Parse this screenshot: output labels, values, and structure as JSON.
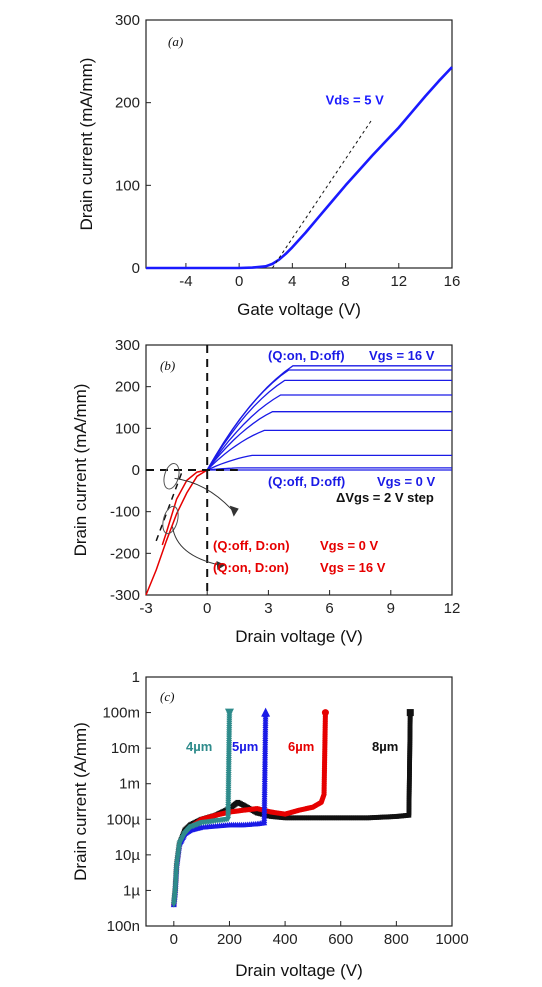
{
  "chart_data": [
    {
      "panel": "(a)",
      "type": "line",
      "xlabel": "Gate voltage (V)",
      "ylabel": "Drain current (mA/mm)",
      "xlim": [
        -7,
        16
      ],
      "ylim": [
        0,
        300
      ],
      "xticks": [
        "-4",
        "0",
        "4",
        "8",
        "12",
        "16"
      ],
      "yticks": [
        "0",
        "100",
        "200",
        "300"
      ],
      "annotations": [
        {
          "text": "Vds = 5 V",
          "color": "#1a1aff"
        }
      ],
      "series": [
        {
          "color": "#1a1aff",
          "x": [
            -7,
            -4,
            0,
            1,
            2,
            2.5,
            3,
            3.5,
            4,
            5,
            6,
            7,
            8,
            9,
            10,
            11,
            12,
            13,
            14,
            15,
            16
          ],
          "y": [
            0,
            0,
            0,
            0.5,
            2,
            5,
            10,
            17,
            25,
            43,
            62,
            81,
            100,
            118,
            136,
            153,
            170,
            189,
            208,
            226,
            243
          ]
        },
        {
          "style": "dashed-fit",
          "color": "#111111",
          "x": [
            2.5,
            10
          ],
          "y": [
            0,
            180
          ]
        }
      ]
    },
    {
      "panel": "(b)",
      "type": "line",
      "xlabel": "Drain voltage (V)",
      "ylabel": "Drain current (mA/mm)",
      "xlim": [
        -3,
        12
      ],
      "ylim": [
        -300,
        300
      ],
      "xticks": [
        "-3",
        "0",
        "3",
        "6",
        "9",
        "12"
      ],
      "yticks": [
        "-300",
        "-200",
        "-100",
        "0",
        "100",
        "200",
        "300"
      ],
      "annotations": [
        {
          "text": "(Q:on, D:off)",
          "color": "#1a1ae6"
        },
        {
          "text": "Vgs = 16 V",
          "color": "#1a1ae6"
        },
        {
          "text": "(Q:off, D:off)",
          "color": "#1a1ae6"
        },
        {
          "text": "Vgs = 0 V",
          "color": "#1a1ae6"
        },
        {
          "text": "ΔVgs = 2 V step",
          "color": "#111111"
        },
        {
          "text": "(Q:off, D:on)",
          "color": "#e60000"
        },
        {
          "text": "Vgs = 0 V",
          "color": "#e60000"
        },
        {
          "text": "(Q:on, D:on)",
          "color": "#e60000"
        },
        {
          "text": "Vgs = 16 V",
          "color": "#e60000"
        }
      ],
      "forward_curves": {
        "color": "#1a1ae6",
        "knee_v": [
          0,
          1.5,
          2.2,
          2.8,
          3.2,
          3.6,
          3.8,
          4.0,
          4.2
        ],
        "sat_current": [
          0,
          5,
          35,
          95,
          140,
          180,
          215,
          240,
          250
        ]
      },
      "reverse_curves": [
        {
          "color": "#e60000",
          "x": [
            -3,
            -2.5,
            -2,
            -1.5,
            -1,
            -0.5,
            0
          ],
          "y": [
            -300,
            -240,
            -170,
            -105,
            -55,
            -15,
            0
          ]
        },
        {
          "color": "#e60000",
          "x": [
            -2.2,
            -2,
            -1.5,
            -1,
            -0.5,
            0
          ],
          "y": [
            -180,
            -150,
            -70,
            -25,
            -5,
            0
          ]
        }
      ],
      "dashed_lines": {
        "color": "#111111",
        "horizontal_y": 0,
        "vertical_x": 0
      }
    },
    {
      "panel": "(c)",
      "type": "scatter",
      "xlabel": "Drain voltage (V)",
      "ylabel": "Drain current (A/mm)",
      "xlim": [
        -100,
        1000
      ],
      "ylim": [
        1e-10,
        1
      ],
      "yscale": "log",
      "xticks": [
        "0",
        "200",
        "400",
        "600",
        "800",
        "1000"
      ],
      "yticks": [
        "100n",
        "1µ",
        "10µ",
        "100µ",
        "1m",
        "10m",
        "100m",
        "1"
      ],
      "series": [
        {
          "name": "4µm",
          "color": "#2e8b8b",
          "marker": "triangle-down",
          "breakdown_v": 200,
          "x": [
            0,
            5,
            10,
            20,
            40,
            60,
            100,
            150,
            195,
            200
          ],
          "y": [
            4e-07,
            1e-06,
            5e-06,
            2e-05,
            4e-05,
            6e-05,
            8e-05,
            9e-05,
            0.0001,
            0.1
          ]
        },
        {
          "name": "5µm",
          "color": "#1a1ae6",
          "marker": "triangle-up",
          "breakdown_v": 330,
          "x": [
            0,
            5,
            10,
            20,
            40,
            60,
            100,
            150,
            200,
            250,
            300,
            325,
            330
          ],
          "y": [
            4e-07,
            1e-06,
            5e-06,
            2e-05,
            4e-05,
            5e-05,
            6e-05,
            6.5e-05,
            7e-05,
            7e-05,
            7.5e-05,
            8e-05,
            0.1
          ]
        },
        {
          "name": "6µm",
          "color": "#e60000",
          "marker": "circle",
          "breakdown_v": 545,
          "x": [
            0,
            5,
            10,
            20,
            40,
            60,
            100,
            150,
            200,
            250,
            300,
            350,
            400,
            450,
            500,
            530,
            540,
            545
          ],
          "y": [
            4e-07,
            1e-06,
            5e-06,
            2e-05,
            4e-05,
            6e-05,
            0.0001,
            0.00013,
            0.00016,
            0.00018,
            0.0002,
            0.00016,
            0.00014,
            0.00018,
            0.00022,
            0.0003,
            0.0005,
            0.1
          ]
        },
        {
          "name": "8µm",
          "color": "#111111",
          "marker": "square",
          "breakdown_v": 850,
          "x": [
            0,
            5,
            10,
            20,
            40,
            60,
            100,
            150,
            200,
            230,
            250,
            300,
            350,
            400,
            500,
            600,
            700,
            800,
            845,
            850
          ],
          "y": [
            4e-07,
            1e-06,
            5e-06,
            2e-05,
            5e-05,
            7e-05,
            0.0001,
            0.00013,
            0.0002,
            0.0003,
            0.00025,
            0.00015,
            0.00012,
            0.00011,
            0.00011,
            0.00011,
            0.00011,
            0.00012,
            0.00013,
            0.1
          ]
        }
      ]
    }
  ]
}
